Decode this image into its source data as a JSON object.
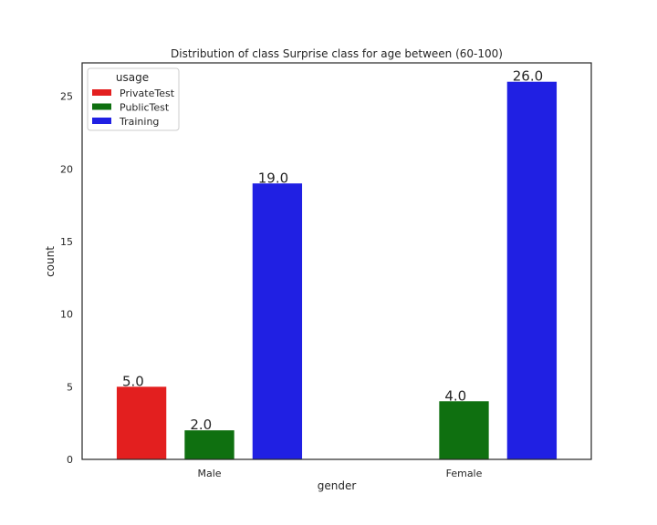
{
  "chart_data": {
    "type": "bar",
    "title": "Distribution of class Surprise class for age between (60-100)",
    "xlabel": "gender",
    "ylabel": "count",
    "categories": [
      "Male",
      "Female"
    ],
    "series": [
      {
        "name": "PrivateTest",
        "values": [
          5.0,
          0.0
        ],
        "color": "#e31f1f",
        "show_label": [
          true,
          false
        ]
      },
      {
        "name": "PublicTest",
        "values": [
          2.0,
          4.0
        ],
        "color": "#0f7010",
        "show_label": [
          true,
          true
        ]
      },
      {
        "name": "Training",
        "values": [
          19.0,
          26.0
        ],
        "color": "#2020e3",
        "show_label": [
          true,
          true
        ]
      }
    ],
    "bar_labels": {
      "PrivateTest": [
        "5.0",
        ""
      ],
      "PublicTest": [
        "2.0",
        "4.0"
      ],
      "Training": [
        "19.0",
        "26.0"
      ]
    },
    "ylim": [
      0,
      27.3
    ],
    "yticks": [
      0,
      5,
      10,
      15,
      20,
      25
    ],
    "grid": false,
    "legend": {
      "title": "usage",
      "placement": "top-left"
    }
  }
}
